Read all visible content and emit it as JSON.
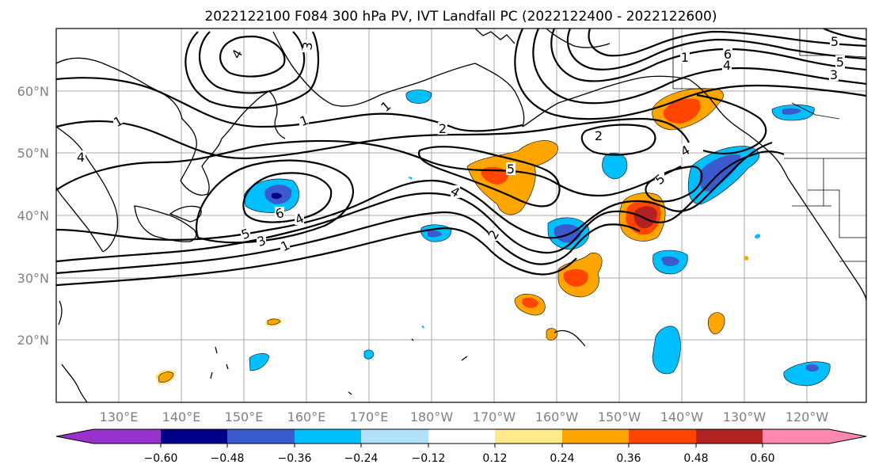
{
  "title": "2022122100 F084 300 hPa PV, IVT Landfall PC (2022122400 - 2022122600)",
  "lat_labels": [
    "60°N",
    "50°N",
    "40°N",
    "30°N",
    "20°N"
  ],
  "lon_labels": [
    "130°E",
    "140°E",
    "150°E",
    "160°E",
    "170°E",
    "180°W",
    "170°W",
    "160°W",
    "150°W",
    "140°W",
    "130°W",
    "120°W"
  ],
  "colorbar": {
    "tick_labels": [
      "−0.60",
      "−0.48",
      "−0.36",
      "−0.24",
      "−0.12",
      "0.12",
      "0.24",
      "0.36",
      "0.48",
      "0.60"
    ],
    "colors": [
      "#9932cc",
      "#00008b",
      "#3a5bcd",
      "#00bfff",
      "#b0e0fa",
      "#ffffff",
      "#ffe98a",
      "#ffa500",
      "#ff4500",
      "#b22222",
      "#ff88b0"
    ]
  },
  "contour_labels": [
    "4",
    "3",
    "1",
    "1",
    "1",
    "4",
    "2",
    "2",
    "1",
    "6",
    "5",
    "3",
    "5",
    "4",
    "6",
    "4",
    "5",
    "3",
    "1",
    "4",
    "2",
    "5",
    "4",
    "5"
  ]
}
